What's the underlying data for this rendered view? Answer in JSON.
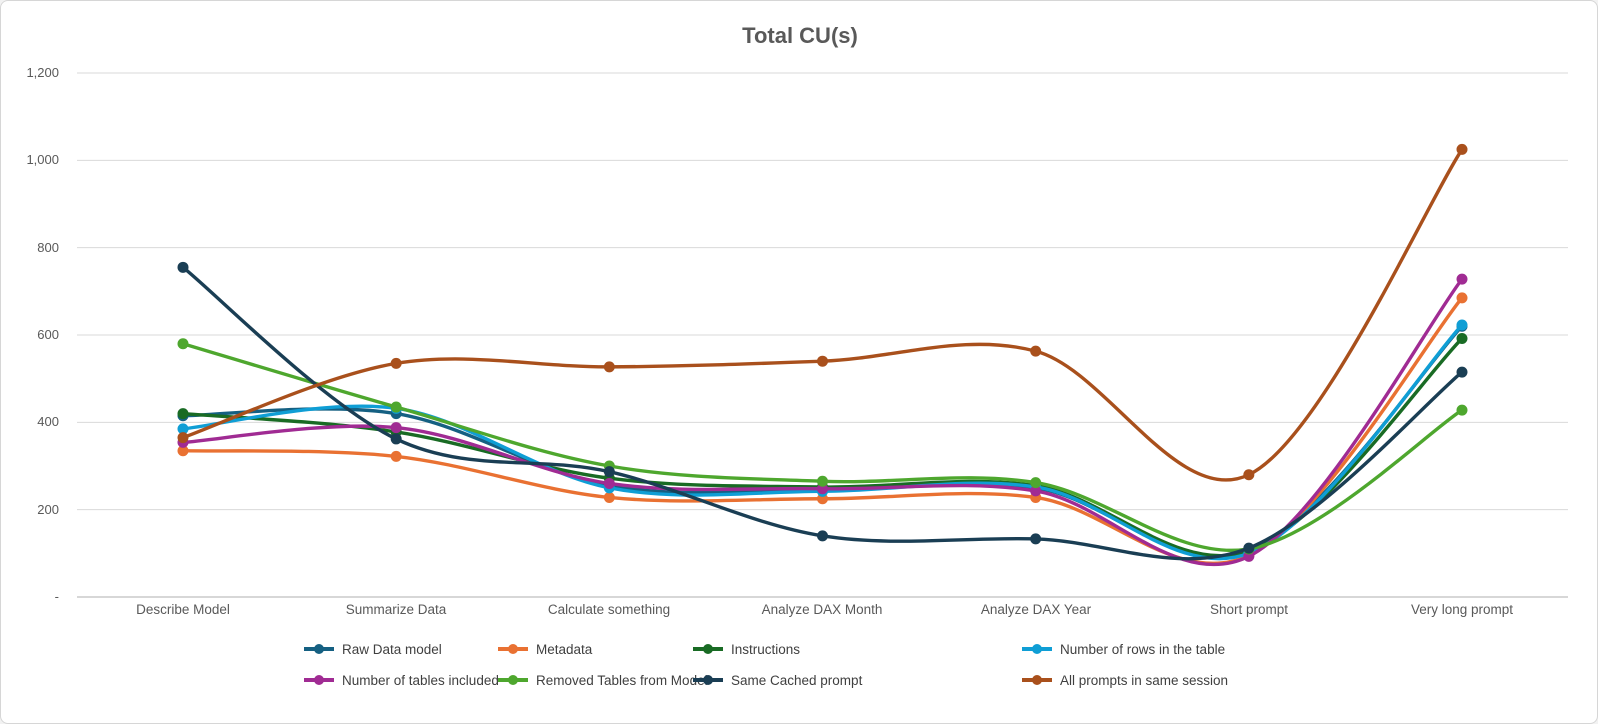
{
  "page": {
    "background": "#ffffff",
    "border_color": "#d6d6d6",
    "gridline_color": "#d9d9d9",
    "axis_line_color": "#bfbfbf",
    "text_color": "#595959"
  },
  "chart_data": {
    "type": "line",
    "title": "Total CU(s)",
    "smoothed": true,
    "grid": true,
    "legend_position": "bottom",
    "xlabel": "",
    "ylabel": "",
    "ylim": [
      0,
      1200
    ],
    "y_tick_step": 200,
    "y_tick_labels": [
      "-",
      "200",
      "400",
      "600",
      "800",
      "1,000",
      "1,200"
    ],
    "categories": [
      "Describe Model",
      "Summarize Data",
      "Calculate something",
      "Analyze DAX Month",
      "Analyze DAX Year",
      "Short prompt",
      "Very long prompt"
    ],
    "series": [
      {
        "name": "Raw Data model",
        "color": "#156082",
        "values": [
          415,
          420,
          255,
          245,
          250,
          105,
          620
        ]
      },
      {
        "name": "Metadata",
        "color": "#E97132",
        "values": [
          335,
          322,
          228,
          225,
          228,
          95,
          685
        ]
      },
      {
        "name": "Instructions",
        "color": "#196B24",
        "values": [
          420,
          378,
          272,
          252,
          255,
          105,
          592
        ]
      },
      {
        "name": "Number of rows in the table",
        "color": "#0F9ED5",
        "values": [
          385,
          432,
          250,
          242,
          252,
          100,
          623
        ]
      },
      {
        "name": "Number of tables included",
        "color": "#A02B93",
        "values": [
          354,
          388,
          260,
          248,
          243,
          93,
          728
        ]
      },
      {
        "name": "Removed Tables from Model",
        "color": "#4EA72E",
        "values": [
          580,
          435,
          300,
          265,
          262,
          110,
          428
        ]
      },
      {
        "name": "Same Cached prompt",
        "color": "#1A3E54",
        "values": [
          755,
          362,
          287,
          140,
          133,
          112,
          515
        ]
      },
      {
        "name": "All prompts in same session",
        "color": "#A9501C",
        "values": [
          365,
          535,
          527,
          540,
          563,
          280,
          1025
        ]
      }
    ]
  }
}
